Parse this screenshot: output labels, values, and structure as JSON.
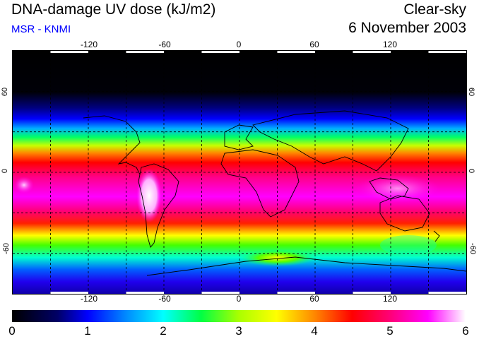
{
  "header": {
    "title": "DNA-damage UV dose (kJ/m2)",
    "source": "MSR - KNMI",
    "condition": "Clear-sky",
    "date": "6 November 2003"
  },
  "map": {
    "projection": "equirectangular",
    "lon_range": [
      -180,
      180
    ],
    "lat_range": [
      -90,
      90
    ],
    "lon_tick_labels": [
      "-120",
      "-60",
      "0",
      "60",
      "120"
    ],
    "lat_tick_labels": [
      "60",
      "0",
      "-60"
    ],
    "grid_style": "dashed"
  },
  "colorbar": {
    "min": 0,
    "max": 6,
    "unit": "kJ/m2",
    "tick_labels": [
      "0",
      "1",
      "2",
      "3",
      "4",
      "5",
      "6"
    ],
    "stops": [
      {
        "value": 0.0,
        "color": "#000000"
      },
      {
        "value": 0.6,
        "color": "#000066"
      },
      {
        "value": 1.0,
        "color": "#0000ff"
      },
      {
        "value": 1.5,
        "color": "#0088ff"
      },
      {
        "value": 2.0,
        "color": "#00ffff"
      },
      {
        "value": 2.5,
        "color": "#00ff44"
      },
      {
        "value": 3.0,
        "color": "#aaff00"
      },
      {
        "value": 3.5,
        "color": "#ffff00"
      },
      {
        "value": 4.0,
        "color": "#ff8800"
      },
      {
        "value": 4.5,
        "color": "#ff0000"
      },
      {
        "value": 5.0,
        "color": "#ff0077"
      },
      {
        "value": 5.5,
        "color": "#ff00ff"
      },
      {
        "value": 6.0,
        "color": "#ffffff"
      }
    ]
  },
  "colors": {
    "coastline": "#000000",
    "grid": "#000000",
    "subtitle": "#0000ff"
  }
}
